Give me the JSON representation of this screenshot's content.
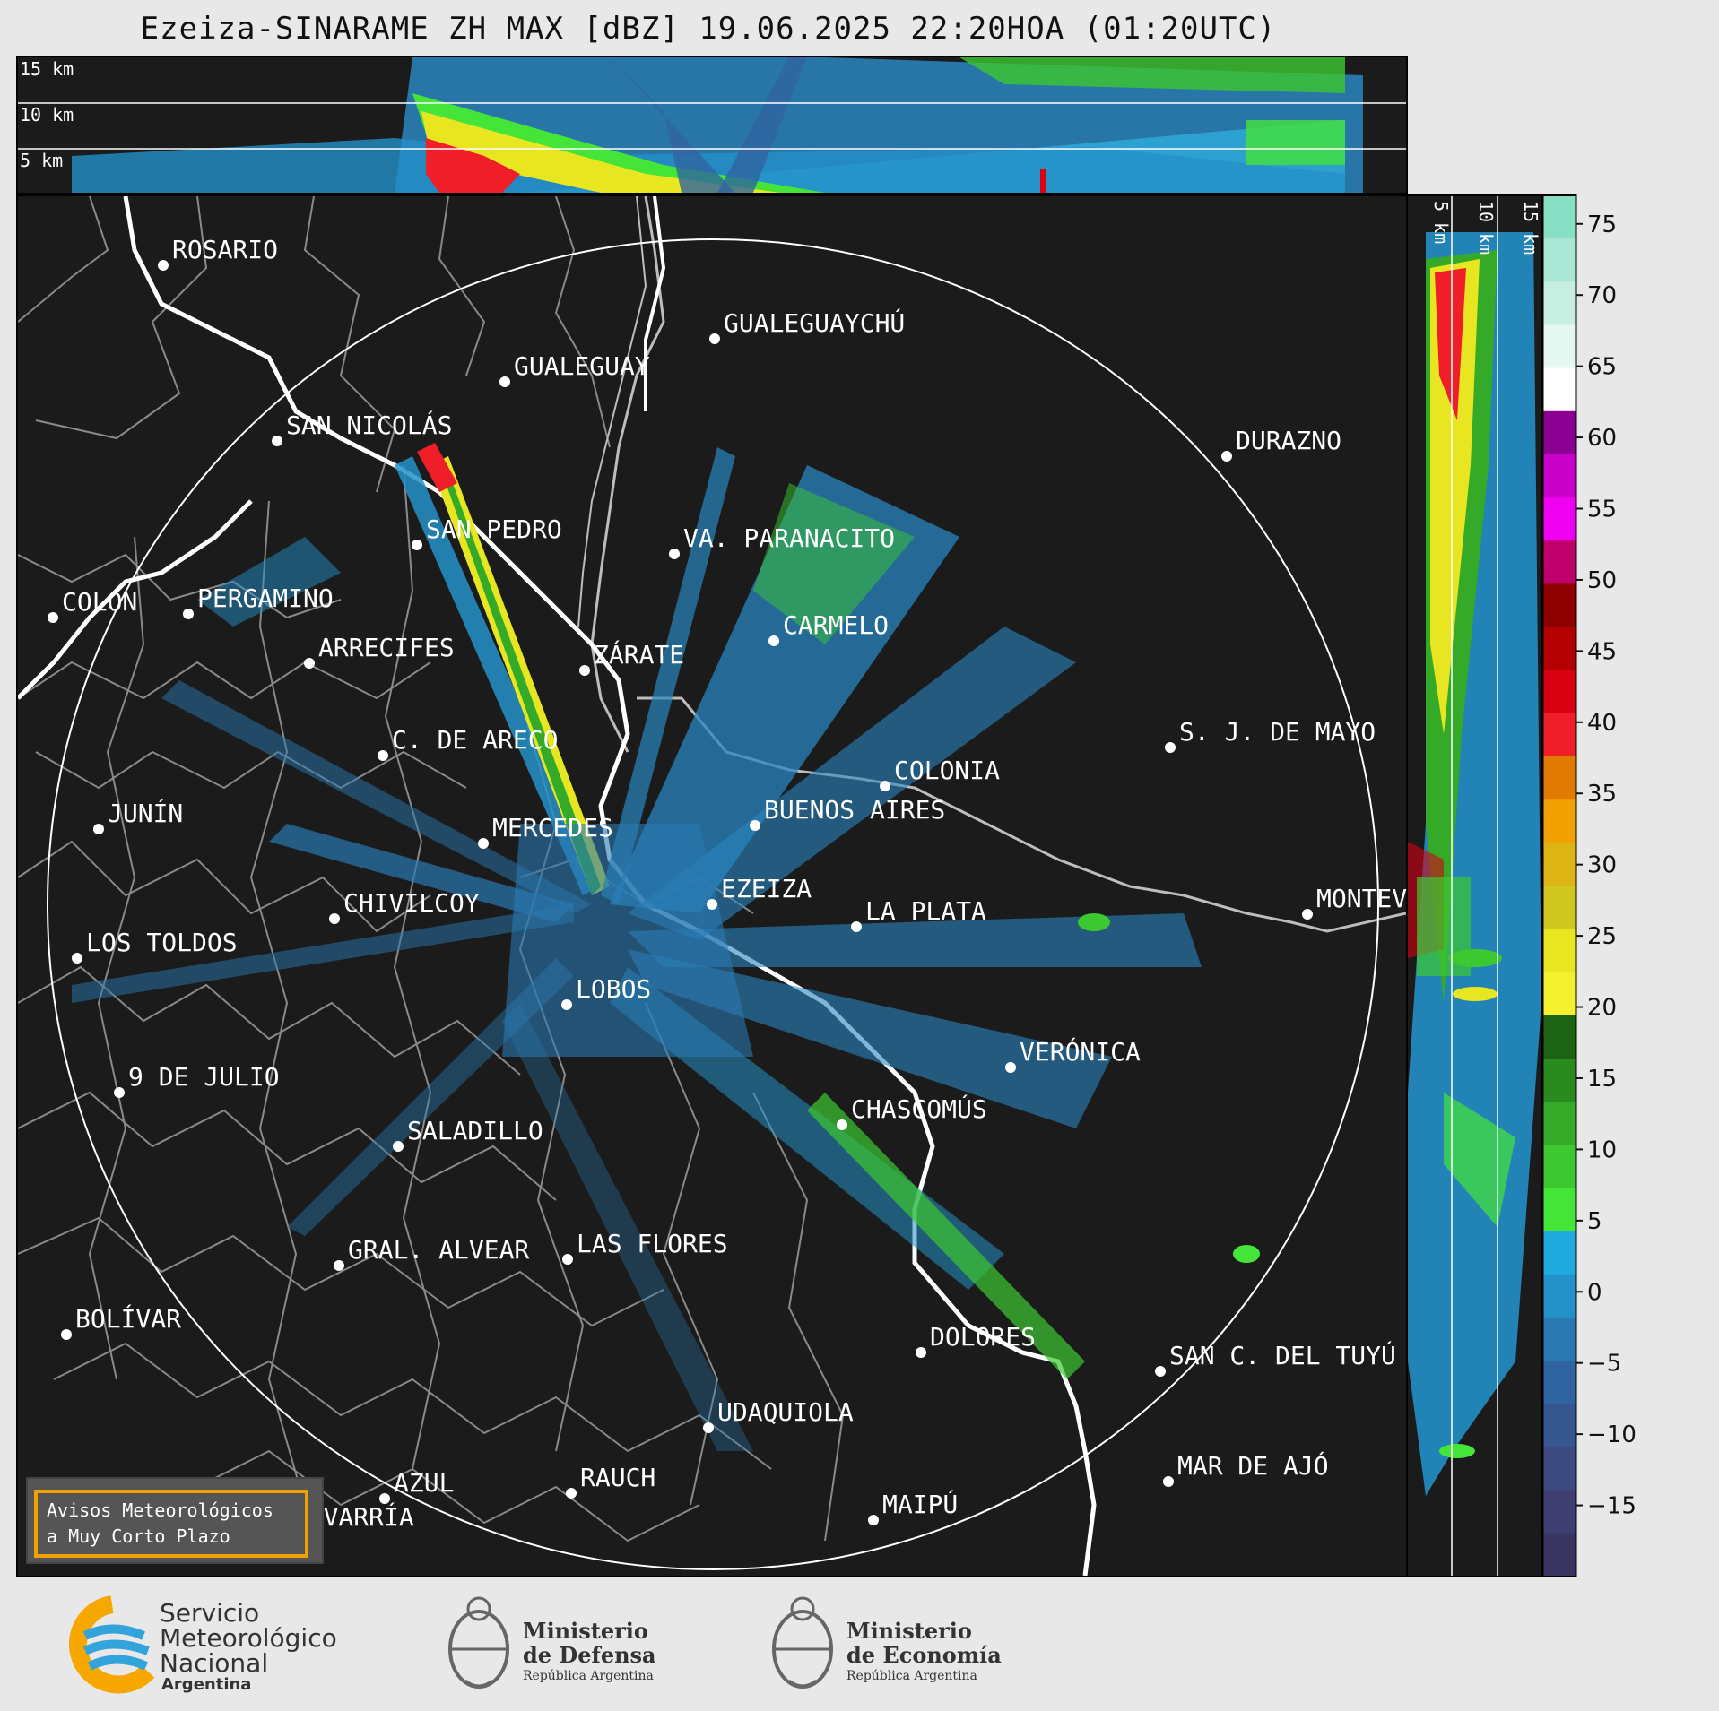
{
  "title": "Ezeiza-SINARAME ZH MAX [dBZ] 19.06.2025 22:20HOA (01:20UTC)",
  "top_panel": {
    "height_labels": [
      "15 km",
      "10 km",
      "5 km"
    ]
  },
  "side_panel": {
    "height_labels": [
      "5 km",
      "10 km",
      "15 km"
    ]
  },
  "colorbar": {
    "ticks": [
      "75",
      "70",
      "65",
      "60",
      "55",
      "50",
      "45",
      "40",
      "35",
      "30",
      "25",
      "20",
      "15",
      "10",
      "5",
      "0",
      "−5",
      "−10",
      "−15"
    ],
    "colors": [
      "#88dfc4",
      "#a8e7d4",
      "#c6efe2",
      "#e4f7f0",
      "#ffffff",
      "#8a0090",
      "#c800c8",
      "#f000f0",
      "#c0006a",
      "#8e0000",
      "#b40000",
      "#d80012",
      "#f01e28",
      "#e07a00",
      "#f0a000",
      "#dcb414",
      "#d0c820",
      "#e8e620",
      "#f4f030",
      "#1c6414",
      "#2a8a20",
      "#34aa28",
      "#3cc830",
      "#44e438",
      "#1eaadc",
      "#2490c8",
      "#2a78b0",
      "#3064a0",
      "#365690",
      "#3c4a80",
      "#3e3e70",
      "#3a3460"
    ],
    "color_thresholds_dbz": [
      75,
      70,
      65,
      60,
      55,
      50,
      45,
      40,
      35,
      30,
      25,
      20,
      15,
      10,
      5,
      0,
      -5,
      -10,
      -15,
      -20
    ]
  },
  "map": {
    "cities": [
      {
        "name": "ROSARIO"
      },
      {
        "name": "GUALEGUAYCHÚ"
      },
      {
        "name": "GUALEGUAY"
      },
      {
        "name": "SAN NICOLÁS"
      },
      {
        "name": "DURAZNO"
      },
      {
        "name": "SAN PEDRO"
      },
      {
        "name": "VA. PARANACITO"
      },
      {
        "name": "COLON"
      },
      {
        "name": "PERGAMINO"
      },
      {
        "name": "CARMELO"
      },
      {
        "name": "ARRECIFES"
      },
      {
        "name": "ZÁRATE"
      },
      {
        "name": "C. DE ARECO"
      },
      {
        "name": "S. J. DE MAYO"
      },
      {
        "name": "COLONIA"
      },
      {
        "name": "JUNÍN"
      },
      {
        "name": "BUENOS AIRES"
      },
      {
        "name": "MERCEDES"
      },
      {
        "name": "EZEIZA"
      },
      {
        "name": "MONTEVIDEO"
      },
      {
        "name": "CHIVILCOY"
      },
      {
        "name": "LA PLATA"
      },
      {
        "name": "LOS TOLDOS"
      },
      {
        "name": "LOBOS"
      },
      {
        "name": "VERÓNICA"
      },
      {
        "name": "9 DE JULIO"
      },
      {
        "name": "CHASCOMÚS"
      },
      {
        "name": "SALADILLO"
      },
      {
        "name": "GRAL. ALVEAR"
      },
      {
        "name": "LAS FLORES"
      },
      {
        "name": "BOLÍVAR"
      },
      {
        "name": "DOLORES"
      },
      {
        "name": "SAN C. DEL TUYÚ"
      },
      {
        "name": "UDAQUIOLA"
      },
      {
        "name": "MAR DE AJÓ"
      },
      {
        "name": "RAUCH"
      },
      {
        "name": "AZUL"
      },
      {
        "name": "OLAVARRÍA"
      },
      {
        "name": "MAIPÚ"
      }
    ],
    "warning_box": [
      "Avisos Meteorológicos",
      "a Muy Corto Plazo"
    ]
  },
  "footer": {
    "smn": [
      "Servicio",
      "Meteorológico",
      "Nacional",
      "Argentina"
    ],
    "defensa": [
      "Ministerio",
      "de Defensa",
      "República Argentina"
    ],
    "economia": [
      "Ministerio",
      "de Economía",
      "República Argentina"
    ]
  }
}
